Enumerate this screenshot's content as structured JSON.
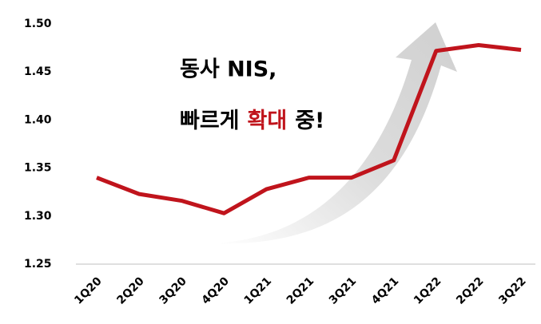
{
  "chart_data": {
    "type": "line",
    "categories": [
      "1Q20",
      "2Q20",
      "3Q20",
      "4Q20",
      "1Q21",
      "2Q21",
      "3Q21",
      "4Q21",
      "1Q22",
      "2Q22",
      "3Q22"
    ],
    "series": [
      {
        "color": "#c0141c",
        "values": [
          1.34,
          1.323,
          1.316,
          1.303,
          1.328,
          1.34,
          1.34,
          1.358,
          1.472,
          1.478,
          1.473
        ]
      }
    ],
    "ylim": [
      1.25,
      1.5
    ],
    "yticks": [
      1.25,
      {
        "value": 1.3,
        "label": "1.30"
      },
      1.35,
      {
        "value": 1.4,
        "label": "1.40"
      },
      1.45,
      {
        "value": 1.5,
        "label": "1.50"
      }
    ],
    "grid": false,
    "annotation": {
      "line1": "동사 NIS,",
      "line2": [
        "빠르게",
        "확대",
        "중!"
      ],
      "highlight_color": "#c0141c"
    }
  }
}
